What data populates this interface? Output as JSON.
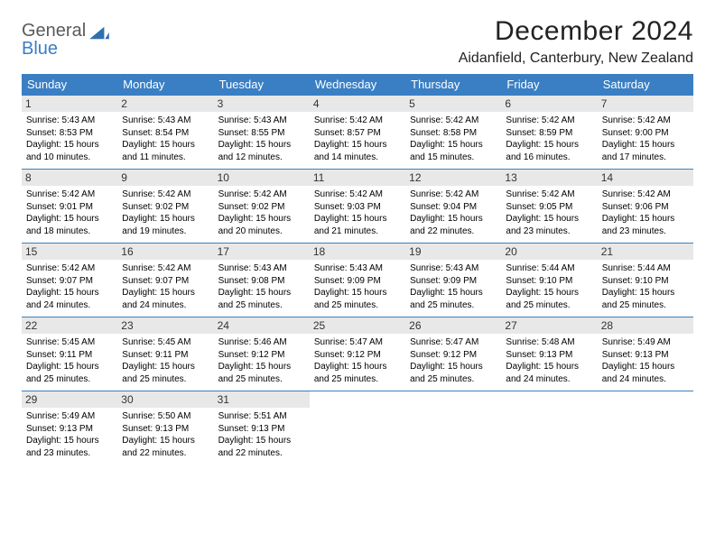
{
  "logo": {
    "line1": "General",
    "line2": "Blue",
    "mark_color": "#2f6fb0"
  },
  "title": "December 2024",
  "location": "Aidanfield, Canterbury, New Zealand",
  "colors": {
    "header_bg": "#3a7fc4",
    "header_text": "#ffffff",
    "daynum_bg": "#e8e8e8",
    "week_divider": "#3a7fc4",
    "page_bg": "#ffffff"
  },
  "weekdays": [
    "Sunday",
    "Monday",
    "Tuesday",
    "Wednesday",
    "Thursday",
    "Friday",
    "Saturday"
  ],
  "weeks": [
    [
      {
        "num": "1",
        "sunrise": "5:43 AM",
        "sunset": "8:53 PM",
        "daylight": "15 hours and 10 minutes."
      },
      {
        "num": "2",
        "sunrise": "5:43 AM",
        "sunset": "8:54 PM",
        "daylight": "15 hours and 11 minutes."
      },
      {
        "num": "3",
        "sunrise": "5:43 AM",
        "sunset": "8:55 PM",
        "daylight": "15 hours and 12 minutes."
      },
      {
        "num": "4",
        "sunrise": "5:42 AM",
        "sunset": "8:57 PM",
        "daylight": "15 hours and 14 minutes."
      },
      {
        "num": "5",
        "sunrise": "5:42 AM",
        "sunset": "8:58 PM",
        "daylight": "15 hours and 15 minutes."
      },
      {
        "num": "6",
        "sunrise": "5:42 AM",
        "sunset": "8:59 PM",
        "daylight": "15 hours and 16 minutes."
      },
      {
        "num": "7",
        "sunrise": "5:42 AM",
        "sunset": "9:00 PM",
        "daylight": "15 hours and 17 minutes."
      }
    ],
    [
      {
        "num": "8",
        "sunrise": "5:42 AM",
        "sunset": "9:01 PM",
        "daylight": "15 hours and 18 minutes."
      },
      {
        "num": "9",
        "sunrise": "5:42 AM",
        "sunset": "9:02 PM",
        "daylight": "15 hours and 19 minutes."
      },
      {
        "num": "10",
        "sunrise": "5:42 AM",
        "sunset": "9:02 PM",
        "daylight": "15 hours and 20 minutes."
      },
      {
        "num": "11",
        "sunrise": "5:42 AM",
        "sunset": "9:03 PM",
        "daylight": "15 hours and 21 minutes."
      },
      {
        "num": "12",
        "sunrise": "5:42 AM",
        "sunset": "9:04 PM",
        "daylight": "15 hours and 22 minutes."
      },
      {
        "num": "13",
        "sunrise": "5:42 AM",
        "sunset": "9:05 PM",
        "daylight": "15 hours and 23 minutes."
      },
      {
        "num": "14",
        "sunrise": "5:42 AM",
        "sunset": "9:06 PM",
        "daylight": "15 hours and 23 minutes."
      }
    ],
    [
      {
        "num": "15",
        "sunrise": "5:42 AM",
        "sunset": "9:07 PM",
        "daylight": "15 hours and 24 minutes."
      },
      {
        "num": "16",
        "sunrise": "5:42 AM",
        "sunset": "9:07 PM",
        "daylight": "15 hours and 24 minutes."
      },
      {
        "num": "17",
        "sunrise": "5:43 AM",
        "sunset": "9:08 PM",
        "daylight": "15 hours and 25 minutes."
      },
      {
        "num": "18",
        "sunrise": "5:43 AM",
        "sunset": "9:09 PM",
        "daylight": "15 hours and 25 minutes."
      },
      {
        "num": "19",
        "sunrise": "5:43 AM",
        "sunset": "9:09 PM",
        "daylight": "15 hours and 25 minutes."
      },
      {
        "num": "20",
        "sunrise": "5:44 AM",
        "sunset": "9:10 PM",
        "daylight": "15 hours and 25 minutes."
      },
      {
        "num": "21",
        "sunrise": "5:44 AM",
        "sunset": "9:10 PM",
        "daylight": "15 hours and 25 minutes."
      }
    ],
    [
      {
        "num": "22",
        "sunrise": "5:45 AM",
        "sunset": "9:11 PM",
        "daylight": "15 hours and 25 minutes."
      },
      {
        "num": "23",
        "sunrise": "5:45 AM",
        "sunset": "9:11 PM",
        "daylight": "15 hours and 25 minutes."
      },
      {
        "num": "24",
        "sunrise": "5:46 AM",
        "sunset": "9:12 PM",
        "daylight": "15 hours and 25 minutes."
      },
      {
        "num": "25",
        "sunrise": "5:47 AM",
        "sunset": "9:12 PM",
        "daylight": "15 hours and 25 minutes."
      },
      {
        "num": "26",
        "sunrise": "5:47 AM",
        "sunset": "9:12 PM",
        "daylight": "15 hours and 25 minutes."
      },
      {
        "num": "27",
        "sunrise": "5:48 AM",
        "sunset": "9:13 PM",
        "daylight": "15 hours and 24 minutes."
      },
      {
        "num": "28",
        "sunrise": "5:49 AM",
        "sunset": "9:13 PM",
        "daylight": "15 hours and 24 minutes."
      }
    ],
    [
      {
        "num": "29",
        "sunrise": "5:49 AM",
        "sunset": "9:13 PM",
        "daylight": "15 hours and 23 minutes."
      },
      {
        "num": "30",
        "sunrise": "5:50 AM",
        "sunset": "9:13 PM",
        "daylight": "15 hours and 22 minutes."
      },
      {
        "num": "31",
        "sunrise": "5:51 AM",
        "sunset": "9:13 PM",
        "daylight": "15 hours and 22 minutes."
      },
      {
        "empty": true
      },
      {
        "empty": true
      },
      {
        "empty": true
      },
      {
        "empty": true
      }
    ]
  ]
}
